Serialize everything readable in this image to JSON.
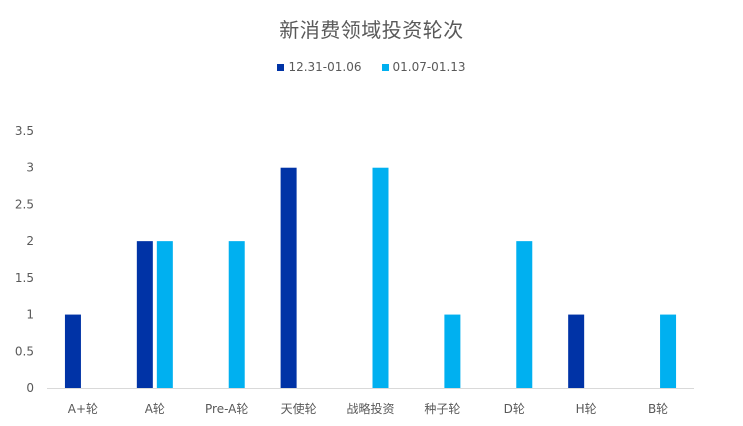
{
  "chart_data": {
    "type": "bar",
    "title": "新消费领域投资轮次",
    "xlabel": "",
    "ylabel": "",
    "categories": [
      "A+轮",
      "A轮",
      "Pre-A轮",
      "天使轮",
      "战略投资",
      "种子轮",
      "D轮",
      "H轮",
      "B轮"
    ],
    "series": [
      {
        "name": "12.31-01.06",
        "color": "#0033A6",
        "values": [
          1,
          2,
          0,
          3,
          0,
          0,
          0,
          1,
          0
        ]
      },
      {
        "name": "01.07-01.13",
        "color": "#00B0F0",
        "values": [
          0,
          2,
          2,
          0,
          3,
          1,
          2,
          0,
          1
        ]
      }
    ],
    "ylim": [
      0,
      3.5
    ],
    "yticks": [
      "0",
      "0.5",
      "1",
      "1.5",
      "2",
      "2.5",
      "3",
      "3.5"
    ],
    "grid": false,
    "legend_position": "top"
  }
}
